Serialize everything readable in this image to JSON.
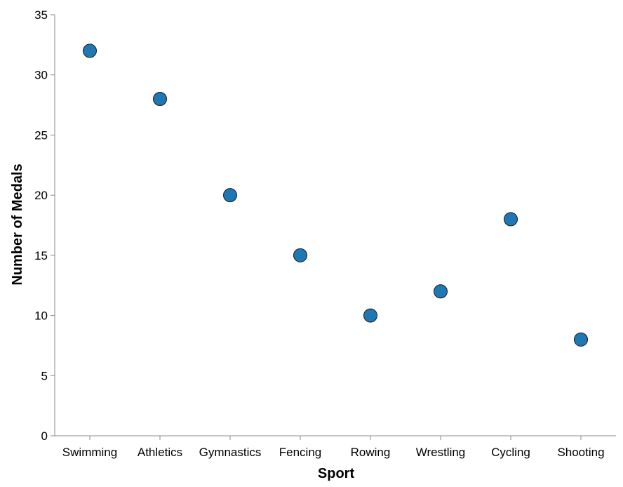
{
  "chart_data": {
    "type": "scatter",
    "categories": [
      "Swimming",
      "Athletics",
      "Gymnastics",
      "Fencing",
      "Rowing",
      "Wrestling",
      "Cycling",
      "Shooting"
    ],
    "values": [
      32,
      28,
      20,
      15,
      10,
      12,
      18,
      8
    ],
    "xlabel": "Sport",
    "ylabel": "Number of Medals",
    "ylim": [
      0,
      35
    ],
    "yticks": [
      0,
      5,
      10,
      15,
      20,
      25,
      30,
      35
    ],
    "grid": false,
    "legend": "none",
    "point_color": "#1f77b4"
  }
}
